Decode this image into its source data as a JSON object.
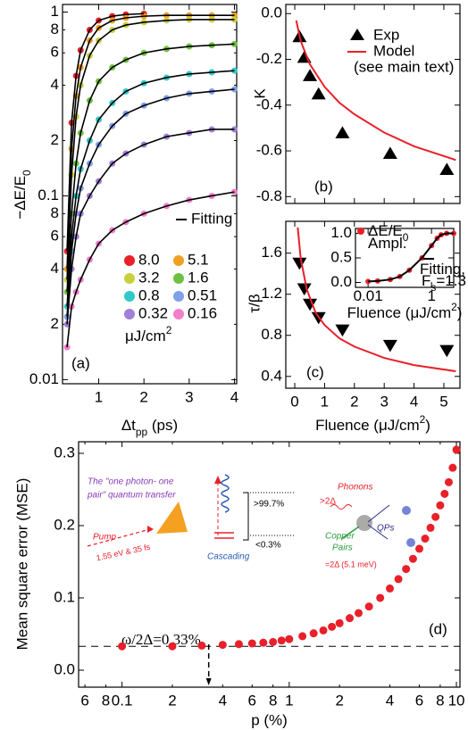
{
  "chart_data": [
    {
      "type": "scatter",
      "panel_label": "(a)",
      "ylog": true,
      "ylabel": [
        {
          "text": "−ΔE/E"
        },
        {
          "text": "0",
          "shift": "sub"
        }
      ],
      "xlabel": [
        {
          "text": "Δt"
        },
        {
          "text": "pp",
          "shift": "sub"
        },
        {
          "text": " (ps)"
        }
      ],
      "xlim": [
        0.2,
        4.05
      ],
      "xticks": [
        1,
        2,
        3,
        4
      ],
      "ylim": [
        0.0095,
        1.1
      ],
      "yticks": [
        0.01,
        {
          "value": 0.02,
          "label": "2"
        },
        {
          "value": 0.04,
          "label": "4"
        },
        {
          "value": 0.06,
          "label": "6"
        },
        {
          "value": 0.08,
          "label": "8"
        },
        0.1,
        {
          "value": 0.2,
          "label": "2"
        },
        {
          "value": 0.4,
          "label": "4"
        },
        {
          "value": 0.6,
          "label": "6"
        },
        {
          "value": 0.8,
          "label": "8"
        },
        1
      ],
      "fit_label": "Fitting",
      "fit_color": "#000000",
      "legend_unit": [
        {
          "text": "μJ/cm"
        },
        {
          "text": "2",
          "shift": "sup"
        }
      ],
      "x": [
        0.3,
        0.4,
        0.5,
        0.6,
        0.8,
        1.0,
        1.3,
        1.6,
        2.0,
        2.5,
        3.0,
        3.5,
        4.0
      ],
      "series": [
        {
          "name": "8.0",
          "color": "#e8202a",
          "marker": "circle",
          "fit": true,
          "values": [
            0.05,
            0.25,
            0.45,
            0.62,
            0.8,
            0.9,
            0.95,
            0.97,
            0.98,
            null,
            null,
            null,
            null
          ]
        },
        {
          "name": "5.1",
          "color": "#f0a020",
          "marker": "circle",
          "fit": true,
          "values": [
            0.04,
            0.18,
            0.35,
            0.5,
            0.7,
            0.82,
            0.9,
            0.93,
            0.95,
            0.96,
            0.96,
            0.96,
            0.96
          ]
        },
        {
          "name": "3.2",
          "color": "#c8d040",
          "marker": "circle",
          "fit": true,
          "values": [
            0.035,
            0.13,
            0.27,
            0.4,
            0.58,
            0.7,
            0.8,
            0.85,
            0.88,
            0.9,
            0.91,
            0.91,
            0.91
          ]
        },
        {
          "name": "1.6",
          "color": "#70c040",
          "marker": "circle",
          "fit": true,
          "values": [
            0.03,
            0.08,
            0.15,
            0.22,
            0.33,
            0.42,
            0.5,
            0.55,
            0.6,
            0.63,
            0.65,
            0.66,
            0.67
          ]
        },
        {
          "name": "0.8",
          "color": "#30c8c8",
          "marker": "circle",
          "fit": true,
          "values": [
            0.025,
            0.06,
            0.1,
            0.14,
            0.2,
            0.26,
            0.32,
            0.37,
            0.41,
            0.44,
            0.46,
            0.47,
            0.48
          ]
        },
        {
          "name": "0.51",
          "color": "#80a0e8",
          "marker": "circle",
          "fit": true,
          "values": [
            0.022,
            0.05,
            0.08,
            0.11,
            0.15,
            0.19,
            0.24,
            0.28,
            0.31,
            0.34,
            0.36,
            0.37,
            0.38
          ]
        },
        {
          "name": "0.32",
          "color": "#a080d8",
          "marker": "circle",
          "fit": true,
          "values": [
            0.02,
            0.04,
            0.06,
            0.08,
            0.1,
            0.12,
            0.15,
            0.17,
            0.19,
            0.21,
            0.22,
            0.23,
            0.23
          ]
        },
        {
          "name": "0.16",
          "color": "#f080c8",
          "marker": "circle",
          "fit": true,
          "values": [
            0.015,
            0.025,
            0.03,
            0.035,
            0.045,
            0.055,
            0.065,
            0.072,
            0.08,
            0.088,
            0.095,
            0.1,
            0.105
          ]
        }
      ]
    },
    {
      "type": "scatter",
      "panel_label": "(b)",
      "ylabel": "K",
      "xlim": [
        -0.3,
        5.54
      ],
      "xticks": [
        0,
        1,
        2,
        3,
        4,
        5
      ],
      "xtick_labels": false,
      "ylim": [
        -0.83,
        0.04
      ],
      "yticks": [
        {
          "value": 0,
          "label": "0.0"
        },
        -0.2,
        -0.4,
        -0.6,
        -0.8
      ],
      "legend_note": "(see main text)",
      "series": [
        {
          "name": "Exp",
          "color": "#000000",
          "marker": "triangle-up",
          "x": [
            0.16,
            0.32,
            0.51,
            0.8,
            1.6,
            3.2,
            5.1
          ],
          "values": [
            -0.1,
            -0.19,
            -0.27,
            -0.35,
            -0.52,
            -0.61,
            -0.68
          ]
        },
        {
          "name": "Model",
          "color": "#e8202a",
          "marker": "line",
          "x": [
            0.05,
            0.2,
            0.5,
            1,
            1.5,
            2,
            3,
            4,
            5.4
          ],
          "values": [
            -0.03,
            -0.12,
            -0.22,
            -0.32,
            -0.39,
            -0.44,
            -0.52,
            -0.58,
            -0.64
          ]
        }
      ]
    },
    {
      "type": "scatter",
      "panel_label": "(c)",
      "ylabel": "τ/β",
      "xlabel": [
        {
          "text": "Fluence (μJ/cm"
        },
        {
          "text": "2",
          "shift": "sup"
        },
        {
          "text": ")"
        }
      ],
      "xlim": [
        -0.3,
        5.54
      ],
      "xticks": [
        0,
        1,
        2,
        3,
        4,
        5
      ],
      "ylim": [
        0.285,
        1.91
      ],
      "yticks": [
        0.4,
        0.8,
        1.2,
        1.6
      ],
      "series": [
        {
          "name": "Exp",
          "color": "#000000",
          "marker": "triangle-down",
          "x": [
            0.16,
            0.32,
            0.51,
            0.8,
            1.6,
            3.2,
            5.1
          ],
          "values": [
            1.5,
            1.25,
            1.1,
            0.97,
            0.85,
            0.7,
            0.65
          ]
        },
        {
          "name": "Model",
          "color": "#e8202a",
          "marker": "line",
          "x": [
            0.1,
            0.2,
            0.4,
            0.7,
            1,
            1.5,
            2,
            3,
            4,
            5.4
          ],
          "values": [
            1.85,
            1.55,
            1.25,
            1.02,
            0.9,
            0.77,
            0.69,
            0.58,
            0.51,
            0.45
          ]
        }
      ]
    },
    {
      "type": "scatter",
      "xlog": true,
      "xlabel": [
        {
          "text": "Fluence (μJ/cm"
        },
        {
          "text": "2",
          "shift": "sup"
        },
        {
          "text": ")"
        }
      ],
      "xlim": [
        0.004,
        5
      ],
      "xticks": [
        0.01,
        1
      ],
      "ylim": [
        -0.1,
        1.1
      ],
      "yticks": [
        {
          "value": 0,
          "label": "0.0"
        },
        0.5,
        {
          "value": 1,
          "label": "1.0"
        }
      ],
      "series": [
        {
          "name": [
            {
              "text": "ΔE/E"
            },
            {
              "text": "0",
              "shift": "sub"
            }
          ],
          "name2": [
            {
              "text": "Ampl."
            }
          ],
          "color": "#e8202a",
          "marker": "circle",
          "x": [
            0.01,
            0.02,
            0.05,
            0.1,
            0.2,
            0.5,
            1,
            1.5,
            2,
            3,
            5
          ],
          "values": [
            0.02,
            0.03,
            0.06,
            0.12,
            0.25,
            0.5,
            0.75,
            0.9,
            0.97,
            1.0,
            1.0
          ]
        },
        {
          "name": [
            {
              "text": "Fitting,"
            }
          ],
          "name2": [
            {
              "text": "F"
            },
            {
              "text": "s",
              "shift": "sub"
            },
            {
              "text": "=1.3"
            }
          ],
          "color": "#000000",
          "marker": "line",
          "x": [
            0.01,
            0.02,
            0.05,
            0.1,
            0.2,
            0.5,
            1,
            1.5,
            2,
            3,
            5
          ],
          "values": [
            0.02,
            0.03,
            0.06,
            0.12,
            0.25,
            0.5,
            0.75,
            0.9,
            0.97,
            1.0,
            1.0
          ]
        }
      ]
    },
    {
      "type": "scatter",
      "panel_label": "(d)",
      "xlog": true,
      "ylabel": "Mean square error (MSE)",
      "xlabel": "p (%)",
      "xlim": [
        0.055,
        10.5
      ],
      "xticks": [
        {
          "value": 0.06,
          "label": "6"
        },
        {
          "value": 0.08,
          "label": "8"
        },
        0.1,
        {
          "value": 0.2,
          "label": "2"
        },
        {
          "value": 0.4,
          "label": "4"
        },
        {
          "value": 0.6,
          "label": "6"
        },
        {
          "value": 0.8,
          "label": "8"
        },
        1,
        2,
        4,
        6,
        8,
        10
      ],
      "ylim": [
        -0.0235,
        0.316
      ],
      "yticks": [
        {
          "value": 0,
          "label": "0.0"
        },
        0.1,
        0.2,
        0.3
      ],
      "hline": 0.033,
      "vline": 0.33,
      "annotation": "ω/2Δ=0.33%",
      "series": [
        {
          "color": "#e8202a",
          "marker": "circle",
          "x": [
            0.1,
            0.2,
            0.3,
            0.4,
            0.5,
            0.6,
            0.7,
            0.8,
            0.9,
            1,
            1.2,
            1.4,
            1.6,
            1.8,
            2,
            2.3,
            2.6,
            3,
            3.5,
            4,
            4.5,
            5,
            5.5,
            6,
            6.5,
            7,
            7.5,
            8,
            8.5,
            9,
            9.5,
            10
          ],
          "values": [
            0.033,
            0.033,
            0.034,
            0.035,
            0.036,
            0.037,
            0.038,
            0.039,
            0.041,
            0.043,
            0.047,
            0.051,
            0.055,
            0.06,
            0.065,
            0.072,
            0.079,
            0.088,
            0.1,
            0.113,
            0.126,
            0.14,
            0.154,
            0.168,
            0.182,
            0.197,
            0.212,
            0.228,
            0.244,
            0.26,
            0.28,
            0.305
          ]
        }
      ]
    }
  ],
  "schematic": {
    "title1": "The \"one photon- one",
    "title2": "pair\" quantum transfer",
    "pump": "Pump",
    "pump_spec": "1.55 eV & 35 fs",
    "cascading": "Cascading",
    "high": ">99.7%",
    "low": "<0.3%",
    "phonons": "Phonons",
    "gt2d": ">2Δ",
    "copper": "Copper",
    "pairs": "Pairs",
    "eq2d": "=2Δ (5.1 meV)",
    "qps": "QPs"
  }
}
